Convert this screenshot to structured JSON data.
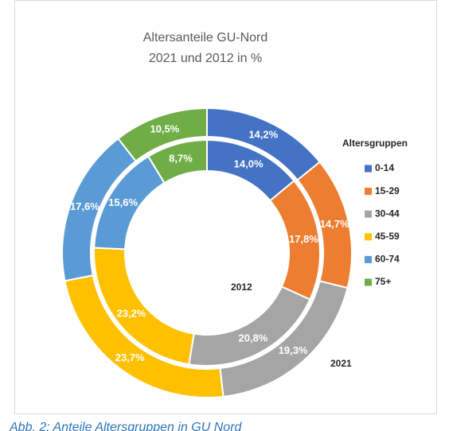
{
  "chart_data": {
    "type": "doughnut",
    "title": [
      "Altersanteile  GU-Nord",
      "2021 und 2012 in %"
    ],
    "categories": [
      "0-14",
      "15-29",
      "30-44",
      "45-59",
      "60-74",
      "75+"
    ],
    "colors": [
      "#4472c4",
      "#ed7d31",
      "#a5a5a5",
      "#ffc000",
      "#5b9bd5",
      "#70ad47"
    ],
    "series": [
      {
        "name": "2021",
        "values": [
          14.2,
          14.7,
          19.3,
          23.7,
          17.6,
          10.5
        ],
        "value_labels": [
          "14,2%",
          "14,7%",
          "19,3%",
          "23,7%",
          "17,6%",
          "10,5%"
        ]
      },
      {
        "name": "2012",
        "values": [
          14.0,
          17.8,
          20.8,
          23.2,
          15.6,
          8.7
        ],
        "value_labels": [
          "14,0%",
          "17,8%",
          "20,8%",
          "23,2%",
          "15,6%",
          "8,7%"
        ]
      }
    ],
    "legend_title": "Altersgruppen",
    "caption": "Abb. 2: Anteile Altersgruppen in GU Nord"
  }
}
